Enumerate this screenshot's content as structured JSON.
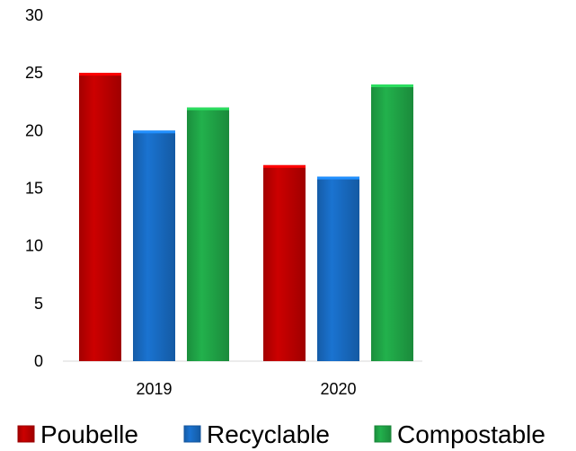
{
  "chart_data": {
    "type": "bar",
    "categories": [
      "2019",
      "2020"
    ],
    "series": [
      {
        "name": "Poubelle",
        "values": [
          25,
          17
        ],
        "color": "#cc0000"
      },
      {
        "name": "Recyclable",
        "values": [
          20,
          16
        ],
        "color": "#1a73d1"
      },
      {
        "name": "Compostable",
        "values": [
          22,
          24
        ],
        "color": "#22b14c"
      }
    ],
    "ylim": [
      0,
      30
    ],
    "yticks": [
      "0",
      "5",
      "10",
      "15",
      "20",
      "25",
      "30"
    ],
    "title": "",
    "xlabel": "",
    "ylabel": "",
    "grid": false,
    "legend_position": "bottom"
  }
}
